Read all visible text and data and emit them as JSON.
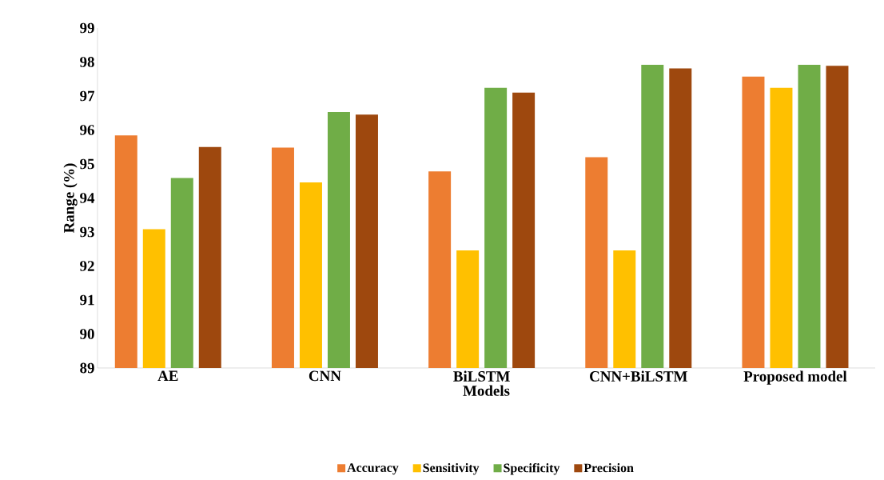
{
  "chart_data": {
    "type": "bar",
    "xlabel": "Models",
    "ylabel": "Range (%)",
    "categories": [
      "AE",
      "CNN",
      "BiLSTM",
      "CNN+BiLSTM",
      "Proposed model"
    ],
    "series": [
      {
        "name": "Accuracy",
        "color": "#ed7d31",
        "values": [
          95.84,
          95.48,
          94.78,
          95.2,
          97.57
        ]
      },
      {
        "name": "Sensitivity",
        "color": "#ffc000",
        "values": [
          93.08,
          94.46,
          92.46,
          92.46,
          97.24
        ]
      },
      {
        "name": "Specificity",
        "color": "#70ad47",
        "values": [
          94.59,
          96.53,
          97.24,
          97.92,
          97.92
        ]
      },
      {
        "name": "Precision",
        "color": "#9e480e",
        "values": [
          95.5,
          96.45,
          97.1,
          97.81,
          97.89
        ]
      }
    ],
    "ylim": [
      89,
      99
    ],
    "yticks": [
      89,
      90,
      91,
      92,
      93,
      94,
      95,
      96,
      97,
      98,
      99
    ],
    "grid": false,
    "legend": "bottom"
  }
}
